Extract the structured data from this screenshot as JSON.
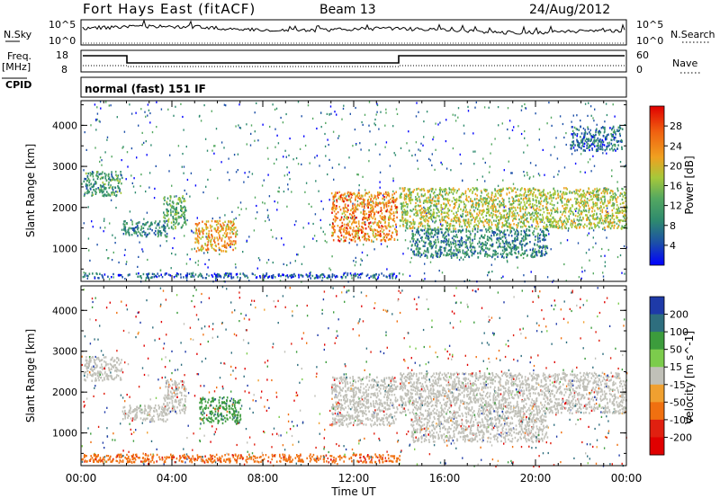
{
  "header": {
    "station": "Fort Hays East (fitACF)",
    "beam": "Beam 13",
    "date": "24/Aug/2012"
  },
  "strips": {
    "nsky_label": "N.Sky",
    "nsky_ticks": [
      "10^5",
      "10^0"
    ],
    "nsearch_label": "N.Search",
    "nsearch_ticks": [
      "10^5",
      "10^0"
    ],
    "freq_label_1": "Freq.",
    "freq_label_2": "[MHz]",
    "freq_ticks": [
      "18",
      "8"
    ],
    "nave_label": "Nave",
    "nave_ticks": [
      "60",
      "0"
    ],
    "cpid_label": "CPID",
    "cpid_value": "normal (fast) 151 IF"
  },
  "chart_data": [
    {
      "type": "heatmap",
      "name": "power",
      "xlabel": "",
      "ylabel": "Slant Range [km]",
      "x_ticks": [
        "00:00",
        "04:00",
        "08:00",
        "12:00",
        "16:00",
        "20:00",
        "00:00"
      ],
      "y_ticks": [
        "1000",
        "2000",
        "3000",
        "4000"
      ],
      "ylim": [
        200,
        4600
      ],
      "xlim_hours": [
        0,
        24
      ],
      "colorbar_label": "Power [dB]",
      "colorbar_ticks": [
        "4",
        "8",
        "12",
        "16",
        "20",
        "24",
        "28"
      ],
      "colorbar_range": [
        0,
        32
      ],
      "colors": [
        "#0000ff",
        "#1c4fa8",
        "#2e8a6e",
        "#54a860",
        "#a6c83a",
        "#f0a020",
        "#f06010",
        "#e00000"
      ],
      "regions": [
        {
          "t": [
            0.1,
            1.8
          ],
          "r": [
            2300,
            2900
          ],
          "db": 12
        },
        {
          "t": [
            1.8,
            3.8
          ],
          "r": [
            1300,
            1700
          ],
          "db": 10
        },
        {
          "t": [
            3.6,
            4.6
          ],
          "r": [
            1500,
            2300
          ],
          "db": 14
        },
        {
          "t": [
            5.0,
            6.8
          ],
          "r": [
            950,
            1700
          ],
          "db": 22
        },
        {
          "t": [
            11.0,
            13.9
          ],
          "r": [
            1200,
            2400
          ],
          "db": 24
        },
        {
          "t": [
            14.0,
            24.0
          ],
          "r": [
            1500,
            2500
          ],
          "db": 18
        },
        {
          "t": [
            14.5,
            20.5
          ],
          "r": [
            800,
            1500
          ],
          "db": 10
        },
        {
          "t": [
            21.5,
            23.8
          ],
          "r": [
            3400,
            4000
          ],
          "db": 8
        },
        {
          "t": [
            0.0,
            14.0
          ],
          "r": [
            300,
            420
          ],
          "db": 6
        }
      ]
    },
    {
      "type": "heatmap",
      "name": "velocity",
      "xlabel": "Time UT",
      "ylabel": "Slant Range [km]",
      "x_ticks": [
        "00:00",
        "04:00",
        "08:00",
        "12:00",
        "16:00",
        "20:00",
        "00:00"
      ],
      "y_ticks": [
        "1000",
        "2000",
        "3000",
        "4000"
      ],
      "ylim": [
        200,
        4600
      ],
      "xlim_hours": [
        0,
        24
      ],
      "colorbar_label": "Velocity [m s^-1]",
      "colorbar_ticks": [
        "200",
        "100",
        "50",
        "15",
        "-15",
        "-50",
        "-100",
        "-200"
      ],
      "colors": [
        "#1e3aa8",
        "#2e6e7e",
        "#3c9c3c",
        "#7ccc4c",
        "#c0c0b8",
        "#f0a030",
        "#f07010",
        "#e02010",
        "#e00000"
      ],
      "regions": [
        {
          "t": [
            0.1,
            1.8
          ],
          "r": [
            2300,
            2900
          ],
          "v": 0
        },
        {
          "t": [
            1.8,
            3.8
          ],
          "r": [
            1300,
            1700
          ],
          "v": 0
        },
        {
          "t": [
            3.6,
            4.6
          ],
          "r": [
            1500,
            2300
          ],
          "v": 0
        },
        {
          "t": [
            5.2,
            7.0
          ],
          "r": [
            1250,
            1900
          ],
          "v": 60
        },
        {
          "t": [
            11.0,
            13.9
          ],
          "r": [
            1200,
            2400
          ],
          "v": 0
        },
        {
          "t": [
            14.0,
            24.0
          ],
          "r": [
            1500,
            2500
          ],
          "v": 0
        },
        {
          "t": [
            14.5,
            20.5
          ],
          "r": [
            800,
            1500
          ],
          "v": 0
        },
        {
          "t": [
            0.0,
            14.0
          ],
          "r": [
            300,
            500
          ],
          "v": -60
        }
      ]
    }
  ]
}
